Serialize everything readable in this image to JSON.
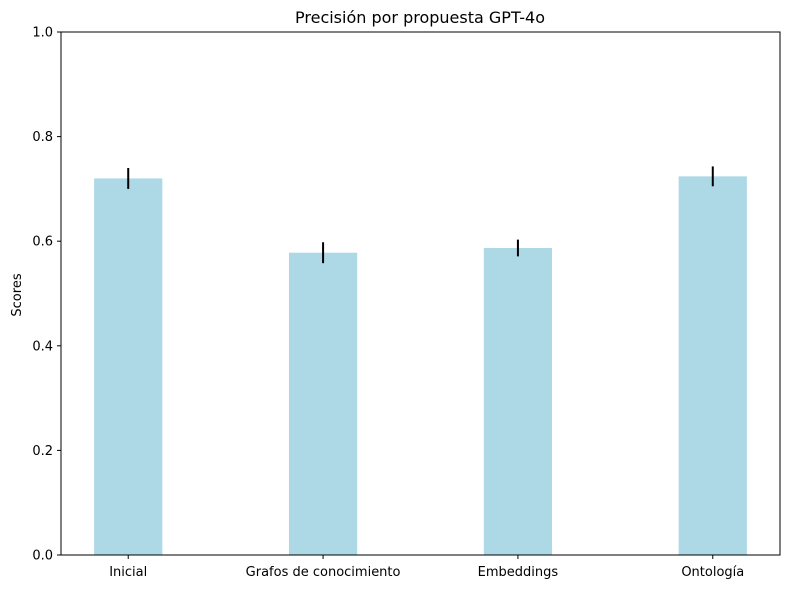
{
  "chart_data": {
    "type": "bar",
    "title": "Precisión por propuesta GPT-4o",
    "xlabel": "",
    "ylabel": "Scores",
    "categories": [
      "Inicial",
      "Grafos de conocimiento",
      "Embeddings",
      "Ontología"
    ],
    "values": [
      0.72,
      0.578,
      0.587,
      0.724
    ],
    "errors": [
      0.02,
      0.02,
      0.016,
      0.019
    ],
    "ylim": [
      0,
      1.0
    ],
    "yticks": [
      "0.0",
      "0.2",
      "0.4",
      "0.6",
      "0.8",
      "1.0"
    ],
    "grid": false,
    "legend": "none",
    "bar_color": "#add8e6",
    "error_color": "#000000"
  }
}
